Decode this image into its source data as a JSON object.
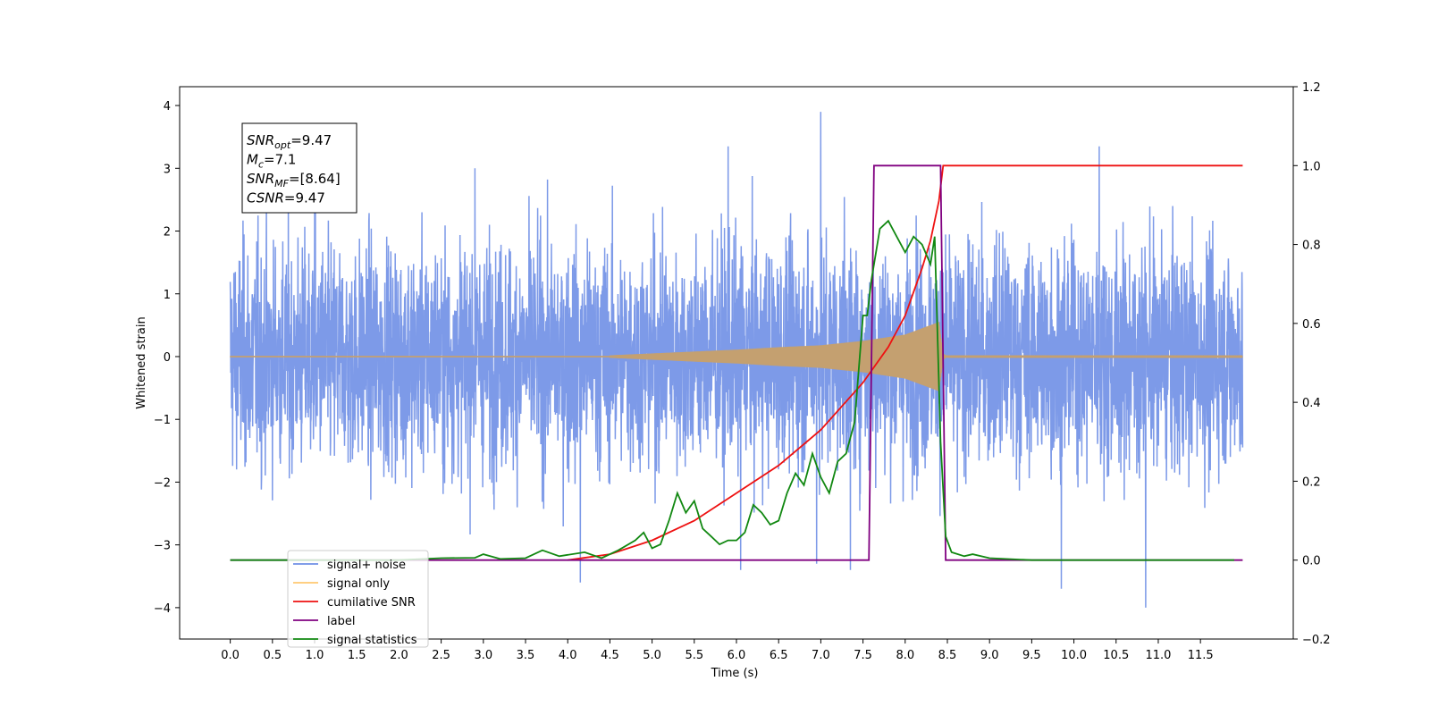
{
  "chart_data": {
    "type": "line",
    "xlabel": "Time (s)",
    "ylabel": "Whitened strain",
    "xlim": [
      -0.6,
      12.6
    ],
    "ylim_left": [
      -4.5,
      4.3
    ],
    "ylim_right": [
      -0.2,
      1.2
    ],
    "x_ticks": [
      0.0,
      0.5,
      1.0,
      1.5,
      2.0,
      2.5,
      3.0,
      3.5,
      4.0,
      4.5,
      5.0,
      5.5,
      6.0,
      6.5,
      7.0,
      7.5,
      8.0,
      8.5,
      9.0,
      9.5,
      10.0,
      10.5,
      11.0,
      11.5
    ],
    "x_tick_labels": [
      "0.0",
      "0.5",
      "1.0",
      "1.5",
      "2.0",
      "2.5",
      "3.0",
      "3.5",
      "4.0",
      "4.5",
      "5.0",
      "5.5",
      "6.0",
      "6.5",
      "7.0",
      "7.5",
      "8.0",
      "8.5",
      "9.0",
      "9.5",
      "10.0",
      "10.5",
      "11.0",
      "11.5"
    ],
    "y_ticks_left": [
      -4,
      -3,
      -2,
      -1,
      0,
      1,
      2,
      3,
      4
    ],
    "y_tick_labels_left": [
      "−4",
      "−3",
      "−2",
      "−1",
      "0",
      "1",
      "2",
      "3",
      "4"
    ],
    "y_ticks_right": [
      -0.2,
      0.0,
      0.2,
      0.4,
      0.6,
      0.8,
      1.0,
      1.2
    ],
    "y_tick_labels_right": [
      "−0.2",
      "0.0",
      "0.2",
      "0.4",
      "0.6",
      "0.8",
      "1.0",
      "1.2"
    ],
    "legend_position": "lower-left",
    "grid": false,
    "annotation": {
      "position": "top-left",
      "lines": [
        {
          "base": "SNR",
          "sub": "opt",
          "value": "=9.47"
        },
        {
          "base": "M",
          "sub": "c",
          "value": "=7.1"
        },
        {
          "base": "SNR",
          "sub": "MF",
          "value": "=[8.64]"
        },
        {
          "base": "CSNR",
          "sub": "",
          "value": "=9.47"
        }
      ]
    },
    "series": [
      {
        "name": "signal+ noise",
        "axis": "left",
        "color": "#6f8fe6",
        "kind": "noise",
        "x_range": [
          0.0,
          12.0
        ],
        "typical_amplitude": 2.3,
        "outliers": [
          [
            1.0,
            2.7
          ],
          [
            2.9,
            3.0
          ],
          [
            4.15,
            -3.6
          ],
          [
            5.9,
            3.35
          ],
          [
            6.05,
            -3.4
          ],
          [
            6.95,
            -3.3
          ],
          [
            7.0,
            3.9
          ],
          [
            7.35,
            -3.4
          ],
          [
            9.85,
            -3.7
          ],
          [
            10.3,
            3.35
          ],
          [
            10.85,
            -4.0
          ],
          [
            10.85,
            3.3
          ]
        ]
      },
      {
        "name": "signal only",
        "axis": "left",
        "color": "#c4a070",
        "kind": "chirp",
        "x_range": [
          0.0,
          12.0
        ],
        "envelope_points": [
          [
            4.5,
            0.02
          ],
          [
            5.0,
            0.05
          ],
          [
            5.5,
            0.08
          ],
          [
            6.0,
            0.11
          ],
          [
            6.5,
            0.15
          ],
          [
            7.0,
            0.18
          ],
          [
            7.5,
            0.25
          ],
          [
            8.0,
            0.35
          ],
          [
            8.4,
            0.55
          ],
          [
            8.45,
            0.05
          ],
          [
            8.5,
            0.0
          ]
        ]
      },
      {
        "name": "cumilative SNR",
        "axis": "right",
        "color": "#ee1111",
        "x": [
          4.0,
          4.5,
          5.0,
          5.5,
          6.0,
          6.5,
          7.0,
          7.5,
          7.8,
          8.0,
          8.2,
          8.3,
          8.4,
          8.45,
          8.5,
          12.0
        ],
        "y": [
          0.0,
          0.015,
          0.05,
          0.1,
          0.17,
          0.24,
          0.33,
          0.45,
          0.54,
          0.62,
          0.74,
          0.81,
          0.91,
          1.0,
          1.0,
          1.0
        ]
      },
      {
        "name": "label",
        "axis": "right",
        "color": "#800080",
        "x": [
          0.0,
          7.57,
          7.63,
          8.42,
          8.48,
          12.0
        ],
        "y": [
          0.0,
          0.0,
          1.0,
          1.0,
          0.0,
          0.0
        ]
      },
      {
        "name": "signal statistics",
        "axis": "right",
        "color": "#118811",
        "x": [
          0.0,
          2.0,
          2.5,
          2.9,
          3.0,
          3.2,
          3.5,
          3.7,
          3.9,
          4.2,
          4.4,
          4.6,
          4.8,
          4.9,
          5.0,
          5.1,
          5.2,
          5.3,
          5.4,
          5.5,
          5.6,
          5.7,
          5.8,
          5.9,
          6.0,
          6.1,
          6.2,
          6.3,
          6.4,
          6.5,
          6.6,
          6.7,
          6.8,
          6.9,
          7.0,
          7.1,
          7.2,
          7.3,
          7.4,
          7.5,
          7.55,
          7.6,
          7.7,
          7.8,
          7.9,
          8.0,
          8.1,
          8.2,
          8.3,
          8.35,
          8.42,
          8.48,
          8.55,
          8.7,
          8.8,
          9.0,
          9.5,
          11.9
        ],
        "y": [
          0.0,
          0.0,
          0.005,
          0.006,
          0.015,
          0.003,
          0.005,
          0.025,
          0.01,
          0.02,
          0.005,
          0.025,
          0.05,
          0.07,
          0.03,
          0.04,
          0.1,
          0.17,
          0.12,
          0.15,
          0.08,
          0.06,
          0.04,
          0.05,
          0.05,
          0.07,
          0.14,
          0.12,
          0.09,
          0.1,
          0.17,
          0.22,
          0.19,
          0.27,
          0.21,
          0.17,
          0.25,
          0.27,
          0.35,
          0.62,
          0.62,
          0.71,
          0.84,
          0.86,
          0.82,
          0.78,
          0.82,
          0.8,
          0.75,
          0.82,
          0.3,
          0.06,
          0.02,
          0.01,
          0.015,
          0.005,
          0.0,
          0.0
        ]
      }
    ]
  }
}
